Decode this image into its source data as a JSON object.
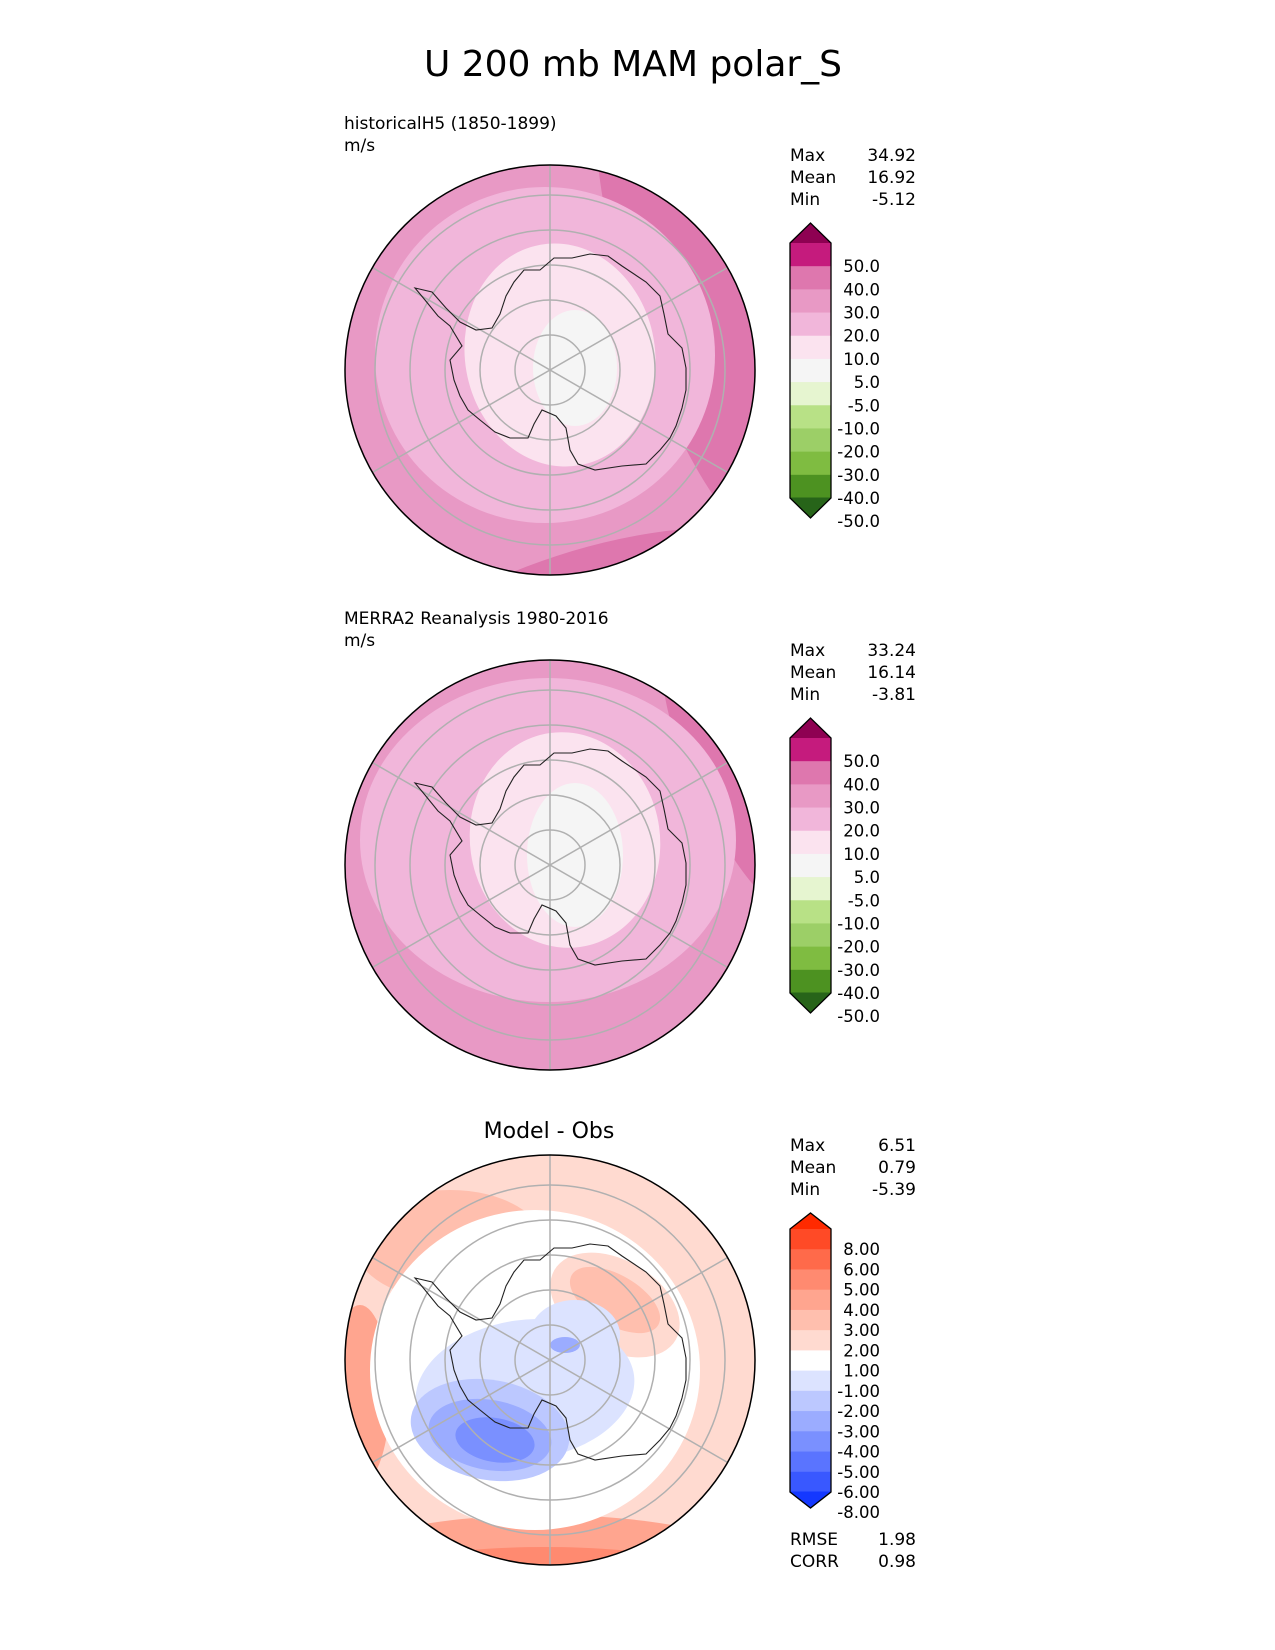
{
  "figure": {
    "title": "U 200 mb MAM polar_S"
  },
  "chart_data": [
    {
      "type": "heatmap",
      "projection": "south polar stereographic",
      "title": "historicalH5 (1850-1899)",
      "units": "m/s",
      "stats": [
        {
          "label": "Max",
          "value": "34.92"
        },
        {
          "label": "Mean",
          "value": "16.92"
        },
        {
          "label": "Min",
          "value": "-5.12"
        }
      ],
      "colorbar": {
        "extend": "both",
        "levels": [
          "50.0",
          "40.0",
          "30.0",
          "20.0",
          "10.0",
          "5.0",
          "-5.0",
          "-10.0",
          "-20.0",
          "-30.0",
          "-40.0",
          "-50.0"
        ],
        "colors": [
          "#8e0152",
          "#c51b7d",
          "#de77ae",
          "#e899c5",
          "#f1b6da",
          "#fbe3ef",
          "#f5f5f5",
          "#e6f5d0",
          "#b8e186",
          "#9ccf67",
          "#7fbc41",
          "#4d9221",
          "#276419"
        ]
      }
    },
    {
      "type": "heatmap",
      "projection": "south polar stereographic",
      "title": "MERRA2 Reanalysis 1980-2016",
      "units": "m/s",
      "stats": [
        {
          "label": "Max",
          "value": "33.24"
        },
        {
          "label": "Mean",
          "value": "16.14"
        },
        {
          "label": "Min",
          "value": "-3.81"
        }
      ],
      "colorbar": {
        "extend": "both",
        "levels": [
          "50.0",
          "40.0",
          "30.0",
          "20.0",
          "10.0",
          "5.0",
          "-5.0",
          "-10.0",
          "-20.0",
          "-30.0",
          "-40.0",
          "-50.0"
        ],
        "colors": [
          "#8e0152",
          "#c51b7d",
          "#de77ae",
          "#e899c5",
          "#f1b6da",
          "#fbe3ef",
          "#f5f5f5",
          "#e6f5d0",
          "#b8e186",
          "#9ccf67",
          "#7fbc41",
          "#4d9221",
          "#276419"
        ]
      }
    },
    {
      "type": "heatmap",
      "projection": "south polar stereographic",
      "title": "Model - Obs",
      "units": "",
      "stats": [
        {
          "label": "Max",
          "value": "6.51"
        },
        {
          "label": "Mean",
          "value": "0.79"
        },
        {
          "label": "Min",
          "value": "-5.39"
        }
      ],
      "metrics": [
        {
          "label": "RMSE",
          "value": "1.98"
        },
        {
          "label": "CORR",
          "value": "0.98"
        }
      ],
      "colorbar": {
        "extend": "both",
        "levels": [
          "8.00",
          "6.00",
          "5.00",
          "4.00",
          "3.00",
          "2.00",
          "1.00",
          "-1.00",
          "-2.00",
          "-3.00",
          "-4.00",
          "-5.00",
          "-6.00",
          "-8.00"
        ],
        "colors": [
          "#ff2a00",
          "#ff4a26",
          "#ff6a4a",
          "#ff8a70",
          "#ffa58f",
          "#ffbfae",
          "#ffdad0",
          "#ffffff",
          "#dce3ff",
          "#bcc8ff",
          "#9bacff",
          "#7a90ff",
          "#5a74ff",
          "#3958ff",
          "#1438ff"
        ]
      }
    }
  ]
}
